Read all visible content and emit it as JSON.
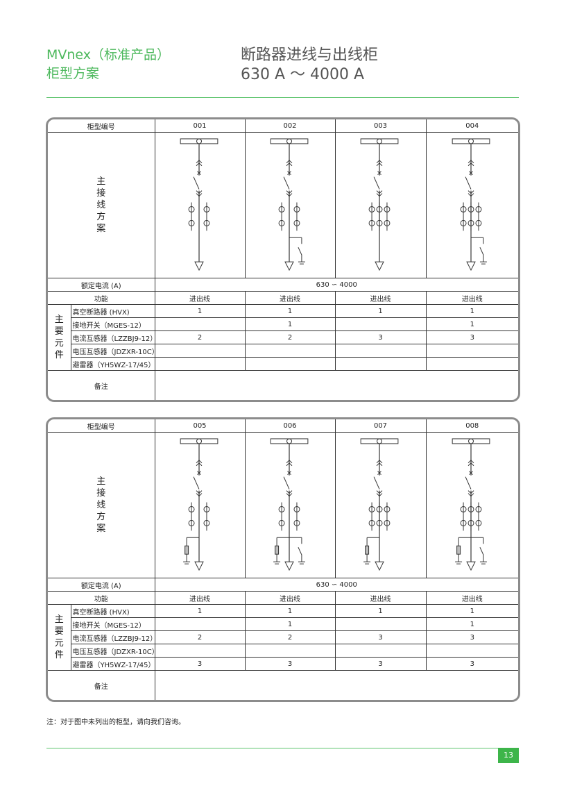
{
  "header": {
    "brand_line1": "MVnex（标准产品）",
    "brand_line2": "柜型方案",
    "title": "断路器进线与出线柜",
    "range": "630 A ～ 4000 A"
  },
  "labels": {
    "cabinet_no": "柜型编号",
    "main_wiring": [
      "主",
      "接",
      "线",
      "方",
      "案"
    ],
    "rated_current": "额定电流 (A)",
    "function": "功能",
    "main_components": [
      "主",
      "要",
      "元",
      "件"
    ],
    "components": [
      "真空断路器 (HVX)",
      "接地开关（MGES-12）",
      "电流互感器（LZZBJ9-12）",
      "电压互感器（JDZXR-10C）",
      "避雷器（YH5WZ-17/45）"
    ],
    "remarks": "备注"
  },
  "tables": [
    {
      "rated_current": "630 ∽ 4000",
      "columns": [
        {
          "no": "001",
          "function": "进出线",
          "values": [
            "1",
            "",
            "2",
            "",
            ""
          ],
          "diagram": {
            "ct_per_phase": 2,
            "earthing_switch": false,
            "surge_arrester": false
          }
        },
        {
          "no": "002",
          "function": "进出线",
          "values": [
            "1",
            "1",
            "2",
            "",
            ""
          ],
          "diagram": {
            "ct_per_phase": 2,
            "earthing_switch": true,
            "surge_arrester": false
          }
        },
        {
          "no": "003",
          "function": "进出线",
          "values": [
            "1",
            "",
            "3",
            "",
            ""
          ],
          "diagram": {
            "ct_per_phase": 3,
            "earthing_switch": false,
            "surge_arrester": false
          }
        },
        {
          "no": "004",
          "function": "进出线",
          "values": [
            "1",
            "1",
            "3",
            "",
            ""
          ],
          "diagram": {
            "ct_per_phase": 3,
            "earthing_switch": true,
            "surge_arrester": false
          }
        }
      ]
    },
    {
      "rated_current": "630 ∽ 4000",
      "columns": [
        {
          "no": "005",
          "function": "进出线",
          "values": [
            "1",
            "",
            "2",
            "",
            "3"
          ],
          "diagram": {
            "ct_per_phase": 2,
            "earthing_switch": false,
            "surge_arrester": true
          }
        },
        {
          "no": "006",
          "function": "进出线",
          "values": [
            "1",
            "1",
            "2",
            "",
            "3"
          ],
          "diagram": {
            "ct_per_phase": 2,
            "earthing_switch": true,
            "surge_arrester": true
          }
        },
        {
          "no": "007",
          "function": "进出线",
          "values": [
            "1",
            "",
            "3",
            "",
            "3"
          ],
          "diagram": {
            "ct_per_phase": 3,
            "earthing_switch": false,
            "surge_arrester": true
          }
        },
        {
          "no": "008",
          "function": "进出线",
          "values": [
            "1",
            "1",
            "3",
            "",
            "3"
          ],
          "diagram": {
            "ct_per_phase": 3,
            "earthing_switch": true,
            "surge_arrester": true
          }
        }
      ]
    }
  ],
  "footer": {
    "note": "注：对于图中未列出的柜型，请向我们咨询。",
    "page": "13"
  },
  "colors": {
    "brand_green": "#4cb85c",
    "page_tab": "#3db54a",
    "frame_gray": "#8c8c8c"
  }
}
